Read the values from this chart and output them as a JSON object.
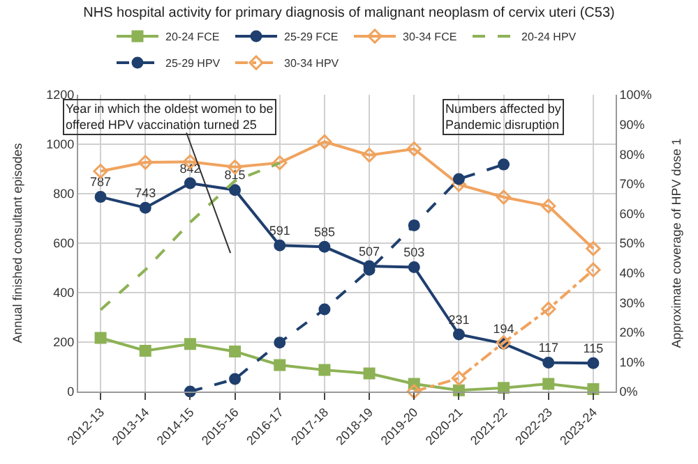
{
  "chart_data": {
    "type": "line",
    "title": "NHS hospital activity for primary diagnosis of malignant neoplasm of cervix uteri (C53)",
    "ylabel": "Annual finished consultant episodes",
    "y2label": "Approximate coverage of HPV dose 1",
    "categories": [
      "2012-13",
      "2013-14",
      "2014-15",
      "2015-16",
      "2016-17",
      "2017-18",
      "2018-19",
      "2019-20",
      "2020-21",
      "2021-22",
      "2022-23",
      "2023-24"
    ],
    "series": [
      {
        "name": "20-24 FCE",
        "color": "#8db255",
        "marker": "square",
        "line_style": "solid",
        "values": [
          217,
          165,
          192,
          162,
          107,
          87,
          73,
          31,
          5,
          15,
          31,
          10
        ]
      },
      {
        "name": "25-29 FCE",
        "color": "#1f3f6e",
        "marker": "circle",
        "line_style": "solid",
        "values": [
          787,
          743,
          842,
          815,
          591,
          585,
          507,
          503,
          231,
          194,
          117,
          115
        ],
        "value_labels": [
          "787",
          "743",
          "842",
          "815",
          "591",
          "585",
          "507",
          "503",
          "231",
          "194",
          "117",
          "115"
        ]
      },
      {
        "name": "30-34 FCE",
        "color": "#f0a35e",
        "marker": "diamond",
        "line_style": "solid",
        "values": [
          891,
          927,
          929,
          908,
          925,
          1010,
          956,
          981,
          837,
          786,
          750,
          578
        ]
      },
      {
        "name": "20-24 HPV",
        "color": "#8db255",
        "marker": "none",
        "line_style": "dashed",
        "axis": "y2",
        "values": [
          27.5,
          41,
          57,
          71,
          77,
          null,
          null,
          null,
          null,
          null,
          null,
          null
        ]
      },
      {
        "name": "25-29 HPV",
        "color": "#1f3f6e",
        "marker": "circle",
        "line_style": "dashed",
        "axis": "y2",
        "values": [
          null,
          null,
          0,
          4.2,
          16.5,
          27.7,
          41,
          56,
          71.6,
          76.5,
          null,
          null
        ]
      },
      {
        "name": "30-34 HPV",
        "color": "#f0a35e",
        "marker": "diamond",
        "line_style": "dashdot",
        "axis": "y2",
        "values": [
          null,
          null,
          null,
          null,
          null,
          null,
          null,
          0,
          4.5,
          16.5,
          27.8,
          41
        ]
      }
    ],
    "ylim": [
      0,
      1200
    ],
    "yticks": [
      0,
      200,
      400,
      600,
      800,
      1000,
      1200
    ],
    "y2lim": [
      0,
      100
    ],
    "y2ticks": [
      {
        "value": 0,
        "label": "0%"
      },
      {
        "value": 10,
        "label": "10%"
      },
      {
        "value": 20,
        "label": "20%"
      },
      {
        "value": 30,
        "label": "30%"
      },
      {
        "value": 40,
        "label": "40%"
      },
      {
        "value": 50,
        "label": "50%"
      },
      {
        "value": 60,
        "label": "60%"
      },
      {
        "value": 70,
        "label": "70%"
      },
      {
        "value": 80,
        "label": "80%"
      },
      {
        "value": 90,
        "label": "90%"
      },
      {
        "value": 100,
        "label": "100%"
      }
    ],
    "annotations": [
      "Year in which the oldest women to be\noffered HPV vaccination turned 25",
      "Numbers affected by\nPandemic disruption"
    ],
    "grid": true,
    "legend": "top"
  }
}
